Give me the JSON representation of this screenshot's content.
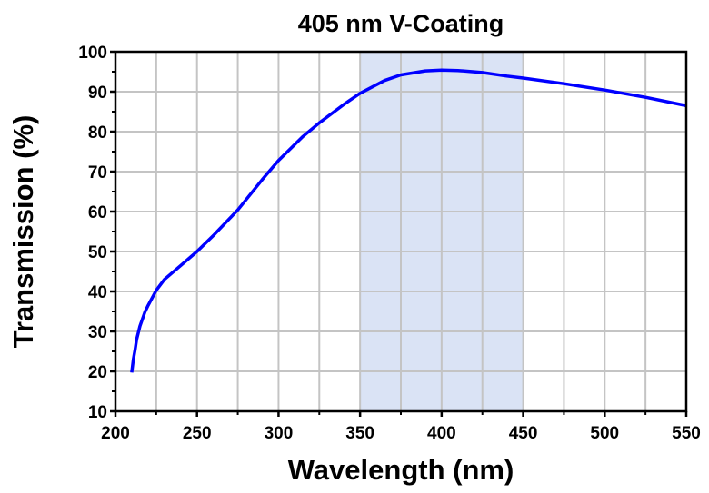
{
  "chart_data": {
    "type": "line",
    "title": "405 nm V-Coating",
    "xlabel": "Wavelength (nm)",
    "ylabel": "Transmission (%)",
    "xlim": [
      200,
      550
    ],
    "ylim": [
      10,
      100
    ],
    "xticks": [
      200,
      250,
      300,
      350,
      400,
      450,
      500,
      550
    ],
    "yticks": [
      10,
      20,
      30,
      40,
      50,
      60,
      70,
      80,
      90,
      100
    ],
    "grid": true,
    "highlight_band": {
      "from": 350,
      "to": 450,
      "color": "#dae3f5"
    },
    "series": [
      {
        "name": "Transmission",
        "color": "#0000ff",
        "x": [
          210,
          211,
          212,
          213,
          215,
          218,
          220,
          225,
          230,
          240,
          250,
          260,
          275,
          290,
          300,
          315,
          325,
          340,
          350,
          365,
          375,
          390,
          400,
          410,
          425,
          440,
          450,
          475,
          500,
          525,
          550
        ],
        "y": [
          19.7,
          23,
          25.3,
          28,
          31.3,
          34.8,
          36.5,
          40.3,
          43,
          46.5,
          50,
          54,
          60.4,
          68,
          72.8,
          78.8,
          82.2,
          86.8,
          89.6,
          92.8,
          94.2,
          95.2,
          95.4,
          95.3,
          94.8,
          93.9,
          93.4,
          92,
          90.4,
          88.6,
          86.5
        ]
      }
    ]
  }
}
